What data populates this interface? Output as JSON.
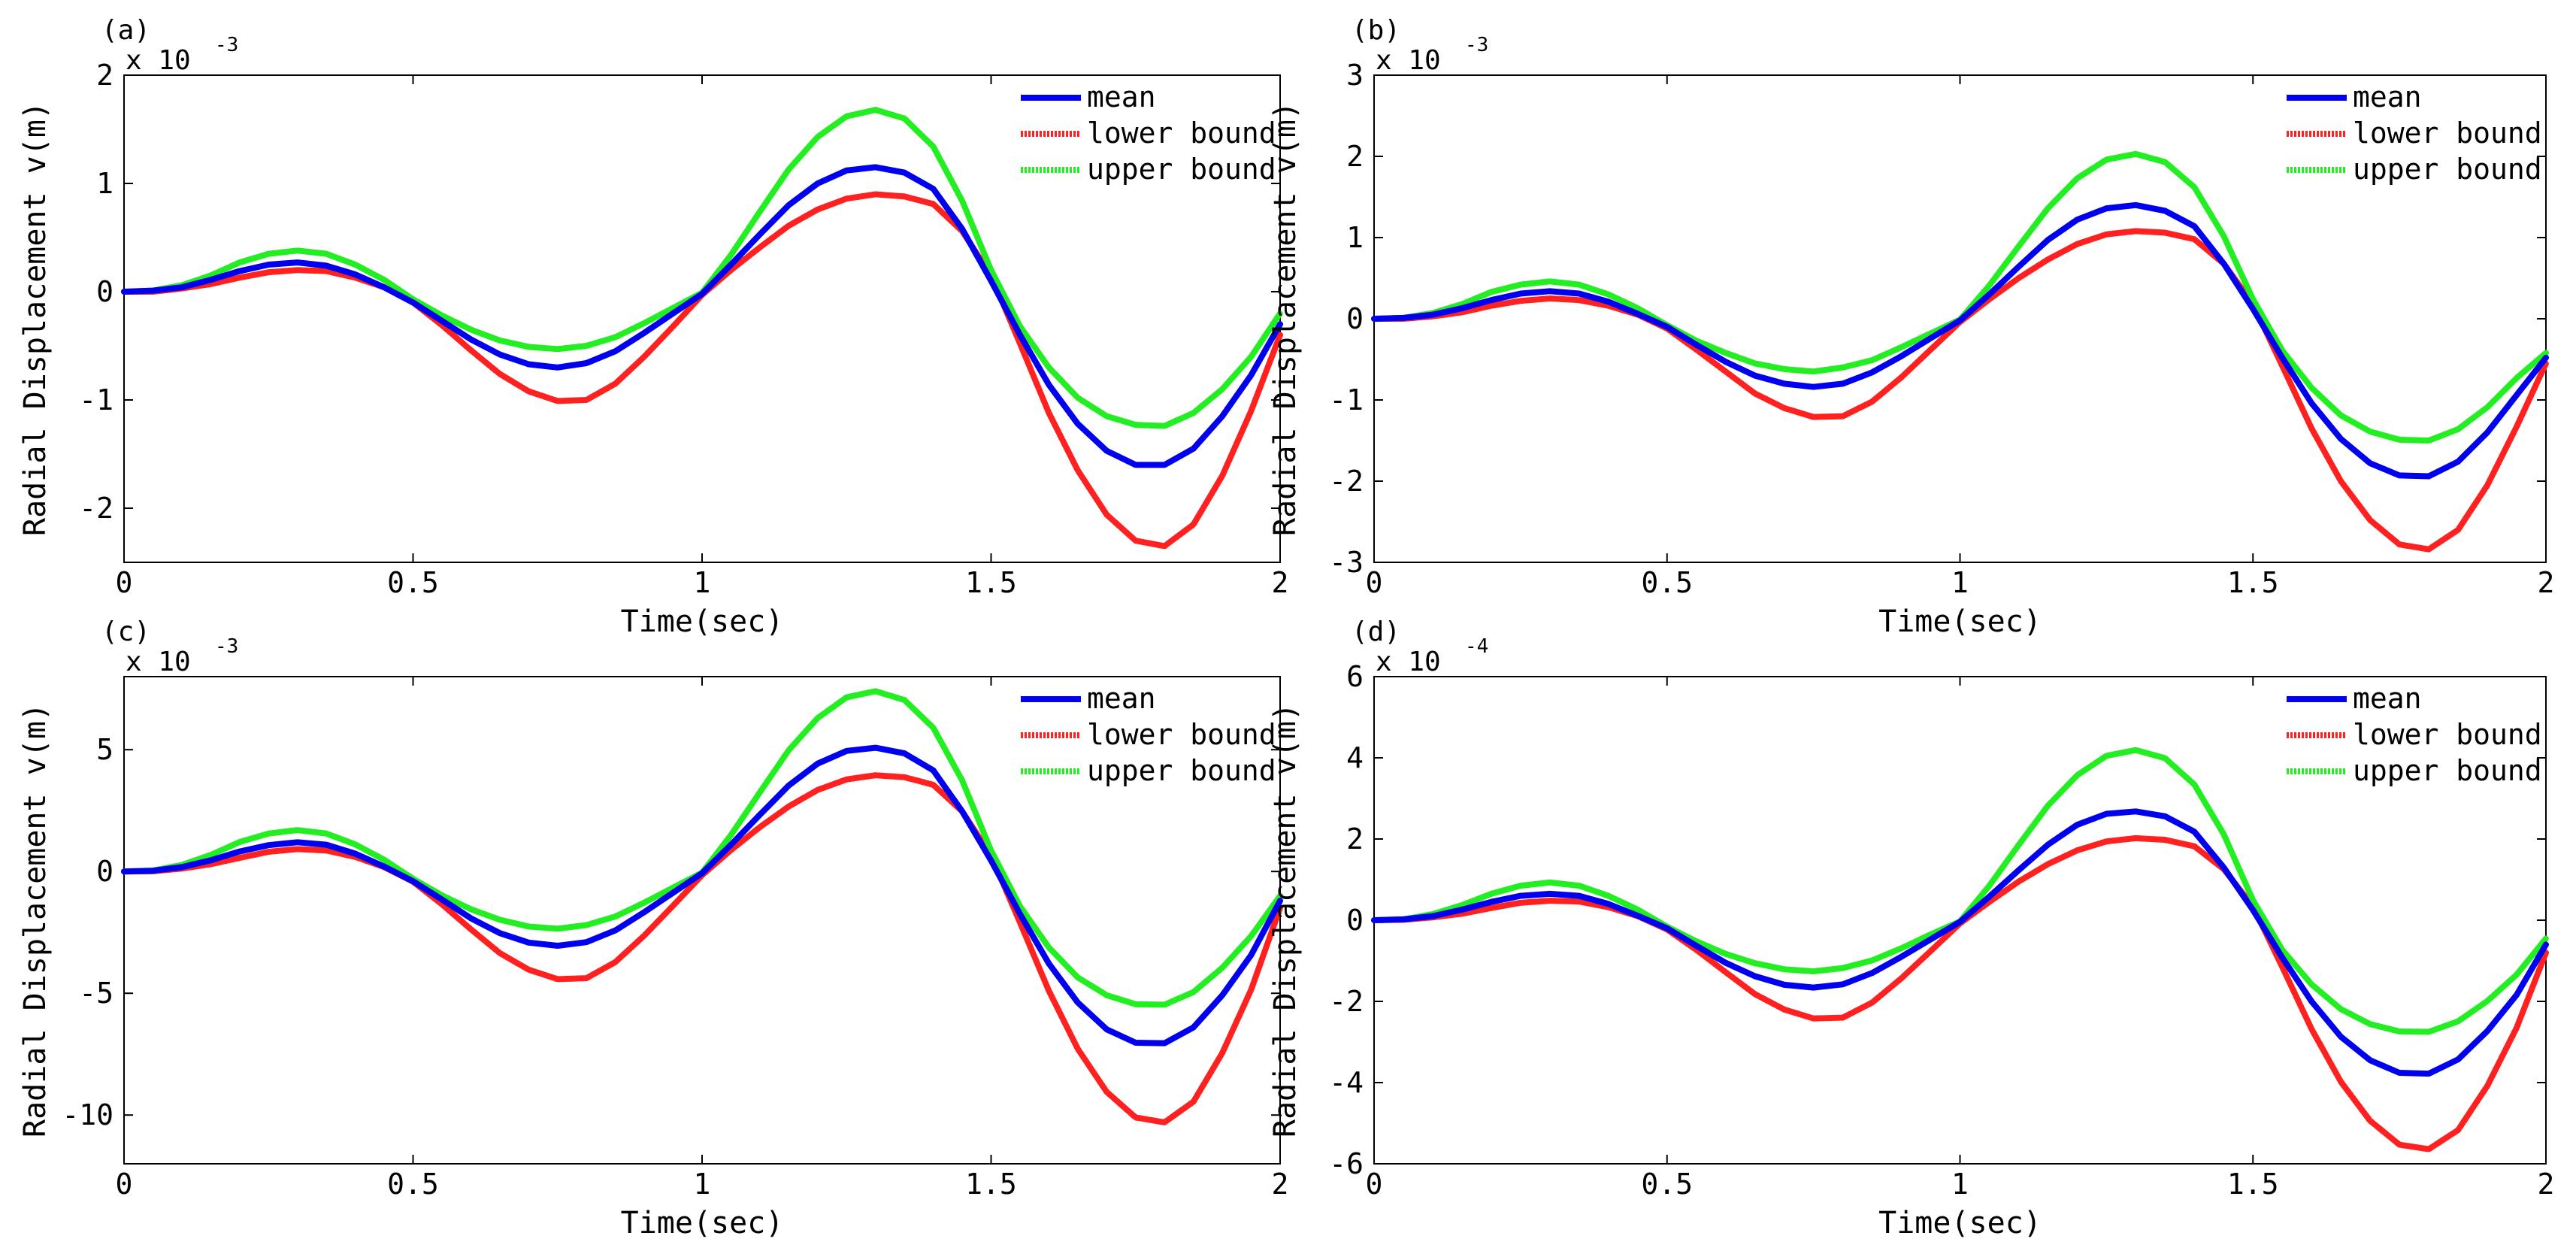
{
  "colors": {
    "mean": "#0000ee",
    "lower": "#ff2020",
    "upper": "#22ee22",
    "axis": "#000000"
  },
  "chart_data": [
    {
      "type": "line",
      "panel_label": "(a)",
      "multiplier": {
        "prefix": "x 10",
        "exponent": "-3"
      },
      "xlabel": "Time(sec)",
      "ylabel": "Radial Displacement v(m)",
      "xlim": [
        0,
        2
      ],
      "ylim": [
        -2.5,
        2
      ],
      "xticks": [
        "0",
        "0.5",
        "1",
        "1.5",
        "2"
      ],
      "yticks": [
        "-2",
        "-1",
        "0",
        "1",
        "2"
      ],
      "ytick_values": [
        -2,
        -1,
        0,
        1,
        2
      ],
      "legend_position": "top-right",
      "grid": false,
      "x": [
        0,
        0.05,
        0.1,
        0.15,
        0.2,
        0.25,
        0.3,
        0.35,
        0.4,
        0.45,
        0.5,
        0.55,
        0.6,
        0.65,
        0.7,
        0.75,
        0.8,
        0.85,
        0.9,
        0.95,
        1.0,
        1.05,
        1.1,
        1.15,
        1.2,
        1.25,
        1.3,
        1.35,
        1.4,
        1.45,
        1.5,
        1.55,
        1.6,
        1.65,
        1.7,
        1.75,
        1.8,
        1.85,
        1.9,
        1.95,
        2.0
      ],
      "series": [
        {
          "name": "mean",
          "color_key": "mean",
          "values": [
            0,
            0.01,
            0.04,
            0.11,
            0.19,
            0.25,
            0.27,
            0.24,
            0.16,
            0.04,
            -0.1,
            -0.27,
            -0.44,
            -0.58,
            -0.67,
            -0.7,
            -0.66,
            -0.55,
            -0.38,
            -0.2,
            -0.02,
            0.25,
            0.53,
            0.8,
            1.0,
            1.12,
            1.15,
            1.1,
            0.95,
            0.58,
            0.1,
            -0.4,
            -0.86,
            -1.22,
            -1.47,
            -1.6,
            -1.6,
            -1.45,
            -1.15,
            -0.77,
            -0.3
          ]
        },
        {
          "name": "lower bound",
          "color_key": "lower",
          "values": [
            0,
            0.0,
            0.03,
            0.07,
            0.13,
            0.18,
            0.2,
            0.19,
            0.13,
            0.04,
            -0.1,
            -0.31,
            -0.54,
            -0.76,
            -0.92,
            -1.01,
            -1.0,
            -0.85,
            -0.6,
            -0.32,
            -0.03,
            0.2,
            0.41,
            0.61,
            0.76,
            0.86,
            0.9,
            0.88,
            0.81,
            0.56,
            0.15,
            -0.48,
            -1.12,
            -1.65,
            -2.06,
            -2.3,
            -2.35,
            -2.15,
            -1.7,
            -1.1,
            -0.4
          ]
        },
        {
          "name": "upper bound",
          "color_key": "upper",
          "values": [
            0,
            0.01,
            0.06,
            0.15,
            0.27,
            0.35,
            0.38,
            0.35,
            0.25,
            0.11,
            -0.07,
            -0.22,
            -0.35,
            -0.45,
            -0.51,
            -0.53,
            -0.5,
            -0.42,
            -0.29,
            -0.15,
            -0.01,
            0.34,
            0.74,
            1.13,
            1.43,
            1.62,
            1.68,
            1.6,
            1.34,
            0.84,
            0.2,
            -0.32,
            -0.7,
            -0.98,
            -1.15,
            -1.23,
            -1.24,
            -1.12,
            -0.9,
            -0.6,
            -0.2
          ]
        }
      ]
    },
    {
      "type": "line",
      "panel_label": "(b)",
      "multiplier": {
        "prefix": "x 10",
        "exponent": "-3"
      },
      "xlabel": "Time(sec)",
      "ylabel": "Radial Displacement v(m)",
      "xlim": [
        0,
        2
      ],
      "ylim": [
        -3,
        3
      ],
      "xticks": [
        "0",
        "0.5",
        "1",
        "1.5",
        "2"
      ],
      "yticks": [
        "-3",
        "-2",
        "-1",
        "0",
        "1",
        "2",
        "3"
      ],
      "ytick_values": [
        -3,
        -2,
        -1,
        0,
        1,
        2,
        3
      ],
      "legend_position": "top-right",
      "grid": false,
      "x": [
        0,
        0.05,
        0.1,
        0.15,
        0.2,
        0.25,
        0.3,
        0.35,
        0.4,
        0.45,
        0.5,
        0.55,
        0.6,
        0.65,
        0.7,
        0.75,
        0.8,
        0.85,
        0.9,
        0.95,
        1.0,
        1.05,
        1.1,
        1.15,
        1.2,
        1.25,
        1.3,
        1.35,
        1.4,
        1.45,
        1.5,
        1.55,
        1.6,
        1.65,
        1.7,
        1.75,
        1.8,
        1.85,
        1.9,
        1.95,
        2.0
      ],
      "series": [
        {
          "name": "mean",
          "color_key": "mean",
          "values": [
            0,
            0.01,
            0.05,
            0.13,
            0.23,
            0.31,
            0.34,
            0.31,
            0.21,
            0.06,
            -0.1,
            -0.32,
            -0.53,
            -0.7,
            -0.8,
            -0.84,
            -0.8,
            -0.66,
            -0.46,
            -0.24,
            -0.02,
            0.3,
            0.64,
            0.97,
            1.22,
            1.36,
            1.4,
            1.33,
            1.14,
            0.68,
            0.12,
            -0.48,
            -1.04,
            -1.48,
            -1.78,
            -1.93,
            -1.94,
            -1.76,
            -1.4,
            -0.94,
            -0.48
          ]
        },
        {
          "name": "lower bound",
          "color_key": "lower",
          "values": [
            0,
            0.0,
            0.03,
            0.08,
            0.16,
            0.22,
            0.25,
            0.23,
            0.16,
            0.05,
            -0.12,
            -0.38,
            -0.65,
            -0.92,
            -1.1,
            -1.21,
            -1.2,
            -1.02,
            -0.72,
            -0.38,
            -0.04,
            0.24,
            0.5,
            0.73,
            0.92,
            1.04,
            1.08,
            1.06,
            0.98,
            0.68,
            0.18,
            -0.58,
            -1.35,
            -2.0,
            -2.48,
            -2.78,
            -2.84,
            -2.6,
            -2.05,
            -1.33,
            -0.55
          ]
        },
        {
          "name": "upper bound",
          "color_key": "upper",
          "values": [
            0,
            0.01,
            0.07,
            0.18,
            0.33,
            0.42,
            0.46,
            0.42,
            0.3,
            0.13,
            -0.08,
            -0.27,
            -0.42,
            -0.55,
            -0.62,
            -0.65,
            -0.6,
            -0.51,
            -0.35,
            -0.18,
            -0.01,
            0.41,
            0.89,
            1.36,
            1.73,
            1.96,
            2.03,
            1.93,
            1.62,
            1.02,
            0.24,
            -0.39,
            -0.85,
            -1.19,
            -1.39,
            -1.49,
            -1.5,
            -1.36,
            -1.09,
            -0.73,
            -0.42
          ]
        }
      ]
    },
    {
      "type": "line",
      "panel_label": "(c)",
      "multiplier": {
        "prefix": "x 10",
        "exponent": "-3"
      },
      "xlabel": "Time(sec)",
      "ylabel": "Radial Displacement v(m)",
      "xlim": [
        0,
        2
      ],
      "ylim": [
        -12,
        8
      ],
      "xticks": [
        "0",
        "0.5",
        "1",
        "1.5",
        "2"
      ],
      "yticks": [
        "-10",
        "-5",
        "0",
        "5"
      ],
      "ytick_values": [
        -10,
        -5,
        0,
        5
      ],
      "legend_position": "top-right",
      "grid": false,
      "x": [
        0,
        0.05,
        0.1,
        0.15,
        0.2,
        0.25,
        0.3,
        0.35,
        0.4,
        0.45,
        0.5,
        0.55,
        0.6,
        0.65,
        0.7,
        0.75,
        0.8,
        0.85,
        0.9,
        0.95,
        1.0,
        1.05,
        1.1,
        1.15,
        1.2,
        1.25,
        1.3,
        1.35,
        1.4,
        1.45,
        1.5,
        1.55,
        1.6,
        1.65,
        1.7,
        1.75,
        1.8,
        1.85,
        1.9,
        1.95,
        2.0
      ],
      "series": [
        {
          "name": "mean",
          "color_key": "mean",
          "values": [
            0,
            0.03,
            0.18,
            0.46,
            0.82,
            1.08,
            1.2,
            1.1,
            0.73,
            0.2,
            -0.4,
            -1.15,
            -1.92,
            -2.53,
            -2.92,
            -3.05,
            -2.9,
            -2.42,
            -1.67,
            -0.87,
            -0.07,
            1.1,
            2.33,
            3.53,
            4.43,
            4.95,
            5.08,
            4.85,
            4.15,
            2.47,
            0.45,
            -1.75,
            -3.78,
            -5.38,
            -6.48,
            -7.03,
            -7.05,
            -6.4,
            -5.08,
            -3.43,
            -1.2
          ]
        },
        {
          "name": "lower bound",
          "color_key": "lower",
          "values": [
            0,
            0.01,
            0.12,
            0.3,
            0.56,
            0.81,
            0.92,
            0.86,
            0.6,
            0.18,
            -0.42,
            -1.35,
            -2.37,
            -3.35,
            -4.03,
            -4.42,
            -4.38,
            -3.72,
            -2.63,
            -1.4,
            -0.15,
            0.88,
            1.82,
            2.67,
            3.35,
            3.78,
            3.95,
            3.87,
            3.56,
            2.47,
            0.65,
            -2.1,
            -4.9,
            -7.28,
            -9.05,
            -10.1,
            -10.3,
            -9.45,
            -7.45,
            -4.85,
            -1.5
          ]
        },
        {
          "name": "upper bound",
          "color_key": "upper",
          "values": [
            0,
            0.04,
            0.27,
            0.68,
            1.21,
            1.56,
            1.7,
            1.56,
            1.11,
            0.48,
            -0.3,
            -0.98,
            -1.55,
            -1.98,
            -2.26,
            -2.35,
            -2.2,
            -1.85,
            -1.28,
            -0.66,
            -0.05,
            1.5,
            3.25,
            4.98,
            6.3,
            7.15,
            7.4,
            7.04,
            5.9,
            3.74,
            0.86,
            -1.43,
            -3.12,
            -4.35,
            -5.08,
            -5.45,
            -5.47,
            -4.95,
            -3.95,
            -2.65,
            -1.0
          ]
        }
      ]
    },
    {
      "type": "line",
      "panel_label": "(d)",
      "multiplier": {
        "prefix": "x 10",
        "exponent": "-4"
      },
      "xlabel": "Time(sec)",
      "ylabel": "Radial Displacement v(m)",
      "xlim": [
        0,
        2
      ],
      "ylim": [
        -6,
        6
      ],
      "xticks": [
        "0",
        "0.5",
        "1",
        "1.5",
        "2"
      ],
      "yticks": [
        "-6",
        "-4",
        "-2",
        "0",
        "2",
        "4",
        "6"
      ],
      "ytick_values": [
        -6,
        -4,
        -2,
        0,
        2,
        4,
        6
      ],
      "legend_position": "top-right",
      "grid": false,
      "x": [
        0,
        0.05,
        0.1,
        0.15,
        0.2,
        0.25,
        0.3,
        0.35,
        0.4,
        0.45,
        0.5,
        0.55,
        0.6,
        0.65,
        0.7,
        0.75,
        0.8,
        0.85,
        0.9,
        0.95,
        1.0,
        1.05,
        1.1,
        1.15,
        1.2,
        1.25,
        1.3,
        1.35,
        1.4,
        1.45,
        1.5,
        1.55,
        1.6,
        1.65,
        1.7,
        1.75,
        1.8,
        1.85,
        1.9,
        1.95,
        2.0
      ],
      "series": [
        {
          "name": "mean",
          "color_key": "mean",
          "values": [
            0,
            0.02,
            0.1,
            0.26,
            0.45,
            0.6,
            0.65,
            0.6,
            0.4,
            0.11,
            -0.2,
            -0.63,
            -1.05,
            -1.38,
            -1.59,
            -1.66,
            -1.58,
            -1.3,
            -0.9,
            -0.47,
            -0.04,
            0.58,
            1.23,
            1.86,
            2.35,
            2.62,
            2.68,
            2.56,
            2.18,
            1.3,
            0.25,
            -0.92,
            -2.0,
            -2.87,
            -3.45,
            -3.76,
            -3.78,
            -3.43,
            -2.73,
            -1.84,
            -0.6
          ]
        },
        {
          "name": "lower bound",
          "color_key": "lower",
          "values": [
            0,
            0.01,
            0.07,
            0.16,
            0.3,
            0.43,
            0.48,
            0.46,
            0.32,
            0.1,
            -0.23,
            -0.73,
            -1.28,
            -1.82,
            -2.2,
            -2.42,
            -2.4,
            -2.03,
            -1.43,
            -0.76,
            -0.08,
            0.45,
            0.95,
            1.38,
            1.72,
            1.94,
            2.02,
            1.98,
            1.82,
            1.26,
            0.34,
            -1.15,
            -2.68,
            -3.98,
            -4.94,
            -5.53,
            -5.64,
            -5.17,
            -4.08,
            -2.65,
            -0.8
          ]
        },
        {
          "name": "upper bound",
          "color_key": "upper",
          "values": [
            0,
            0.02,
            0.15,
            0.37,
            0.65,
            0.85,
            0.93,
            0.85,
            0.6,
            0.26,
            -0.16,
            -0.52,
            -0.83,
            -1.06,
            -1.21,
            -1.26,
            -1.18,
            -0.99,
            -0.69,
            -0.35,
            -0.03,
            0.85,
            1.85,
            2.82,
            3.57,
            4.05,
            4.19,
            3.99,
            3.34,
            2.12,
            0.49,
            -0.73,
            -1.58,
            -2.19,
            -2.56,
            -2.74,
            -2.75,
            -2.49,
            -1.99,
            -1.34,
            -0.45
          ]
        }
      ]
    }
  ]
}
